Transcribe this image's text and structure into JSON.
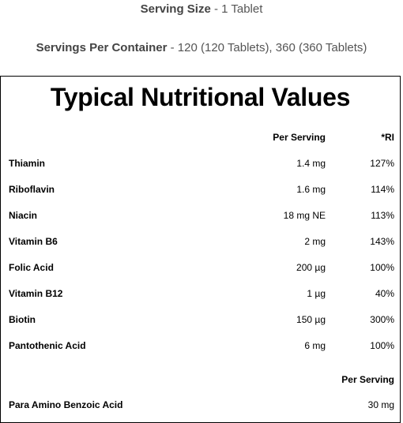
{
  "header": {
    "serving_size_label": "Serving Size",
    "serving_size_value": " - 1 Tablet",
    "servings_per_label": "Servings Per Container",
    "servings_per_value": " - 120 (120 Tablets), 360 (360 Tablets)"
  },
  "panel": {
    "title": "Typical Nutritional Values",
    "col_per_serving": "Per Serving",
    "col_ri": "*RI",
    "rows": [
      {
        "name": "Thiamin",
        "amount": "1.4 mg",
        "ri": "127%"
      },
      {
        "name": "Riboflavin",
        "amount": "1.6 mg",
        "ri": "114%"
      },
      {
        "name": "Niacin",
        "amount": "18 mg NE",
        "ri": "113%"
      },
      {
        "name": "Vitamin B6",
        "amount": "2 mg",
        "ri": "143%"
      },
      {
        "name": "Folic Acid",
        "amount": "200 µg",
        "ri": "100%"
      },
      {
        "name": "Vitamin B12",
        "amount": "1 µg",
        "ri": "40%"
      },
      {
        "name": "Biotin",
        "amount": "150 µg",
        "ri": "300%"
      },
      {
        "name": "Pantothenic Acid",
        "amount": "6 mg",
        "ri": "100%"
      }
    ],
    "second_section": {
      "col_per_serving": "Per Serving",
      "rows": [
        {
          "name": "Para Amino Benzoic Acid",
          "amount": "30 mg"
        }
      ]
    }
  },
  "colors": {
    "header_text": "#555555",
    "border": "#000000"
  }
}
